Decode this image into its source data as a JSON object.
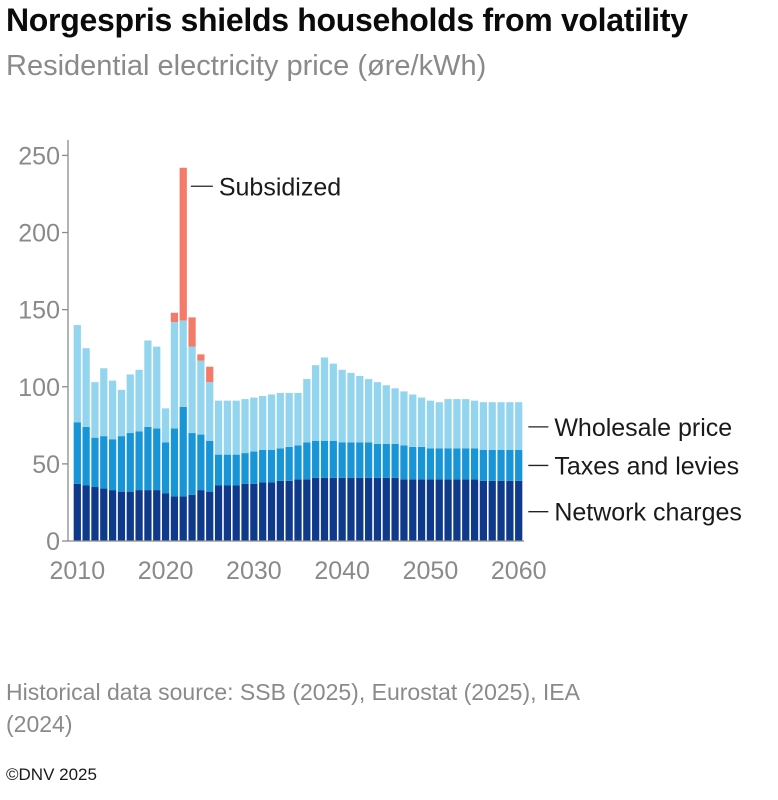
{
  "title": "Norgespris shields households from volatility",
  "subtitle": "Residential electricity price (øre/kWh)",
  "source": "Historical data source: SSB (2025), Eurostat (2025), IEA (2024)",
  "copyright": "©DNV 2025",
  "colors": {
    "network": "#0f3a8c",
    "taxes": "#1895d6",
    "wholesale": "#93d5ee",
    "subsidized": "#f47b6a"
  },
  "chart_data": {
    "type": "bar",
    "stacked": true,
    "x": [
      2010,
      2011,
      2012,
      2013,
      2014,
      2015,
      2016,
      2017,
      2018,
      2019,
      2020,
      2021,
      2022,
      2023,
      2024,
      2025,
      2026,
      2027,
      2028,
      2029,
      2030,
      2031,
      2032,
      2033,
      2034,
      2035,
      2036,
      2037,
      2038,
      2039,
      2040,
      2041,
      2042,
      2043,
      2044,
      2045,
      2046,
      2047,
      2048,
      2049,
      2050,
      2051,
      2052,
      2053,
      2054,
      2055,
      2056,
      2057,
      2058,
      2059,
      2060
    ],
    "xticks": [
      "2010",
      "2020",
      "2030",
      "2040",
      "2050",
      "2060"
    ],
    "xtick_values": [
      2010,
      2020,
      2030,
      2040,
      2050,
      2060
    ],
    "yticks": [
      "0",
      "50",
      "100",
      "150",
      "200",
      "250"
    ],
    "ytick_values": [
      0,
      50,
      100,
      150,
      200,
      250
    ],
    "ylim": [
      0,
      260
    ],
    "xlim": [
      2009.4,
      2060.6
    ],
    "series": [
      {
        "name": "Network charges",
        "key": "network",
        "values": [
          37,
          36,
          35,
          34,
          33,
          32,
          32,
          33,
          33,
          33,
          31,
          29,
          29,
          30,
          33,
          32,
          36,
          36,
          36,
          37,
          37,
          38,
          38,
          39,
          39,
          40,
          40,
          41,
          41,
          41,
          41,
          41,
          41,
          41,
          41,
          41,
          41,
          40,
          40,
          40,
          40,
          40,
          40,
          40,
          40,
          40,
          39,
          39,
          39,
          39,
          39
        ]
      },
      {
        "name": "Taxes and levies",
        "key": "taxes",
        "values": [
          40,
          38,
          32,
          34,
          33,
          36,
          38,
          38,
          41,
          40,
          33,
          44,
          58,
          40,
          36,
          33,
          20,
          20,
          20,
          20,
          21,
          21,
          21,
          21,
          22,
          22,
          24,
          24,
          24,
          24,
          23,
          23,
          23,
          23,
          22,
          22,
          22,
          22,
          21,
          21,
          20,
          20,
          20,
          20,
          20,
          20,
          20,
          20,
          20,
          20,
          20
        ]
      },
      {
        "name": "Wholesale price",
        "key": "wholesale",
        "values": [
          63,
          51,
          36,
          44,
          38,
          30,
          38,
          40,
          56,
          53,
          22,
          69,
          56,
          56,
          48,
          38,
          35,
          35,
          35,
          35,
          35,
          35,
          36,
          36,
          35,
          34,
          41,
          49,
          54,
          50,
          47,
          45,
          43,
          41,
          40,
          38,
          36,
          35,
          34,
          32,
          31,
          30,
          32,
          32,
          32,
          31,
          31,
          31,
          31,
          31,
          31
        ]
      },
      {
        "name": "Subsidized",
        "key": "subsidized",
        "values": [
          0,
          0,
          0,
          0,
          0,
          0,
          0,
          0,
          0,
          0,
          0,
          6,
          99,
          19,
          4,
          10,
          0,
          0,
          0,
          0,
          0,
          0,
          0,
          0,
          0,
          0,
          0,
          0,
          0,
          0,
          0,
          0,
          0,
          0,
          0,
          0,
          0,
          0,
          0,
          0,
          0,
          0,
          0,
          0,
          0,
          0,
          0,
          0,
          0,
          0,
          0
        ]
      }
    ],
    "annotations": [
      {
        "text": "Subsidized",
        "key": "subsidized",
        "x": 2022,
        "y": 230
      },
      {
        "text": "Wholesale price",
        "key": "wholesale",
        "x": 2060,
        "y": 74
      },
      {
        "text": "Taxes and levies",
        "key": "taxes",
        "x": 2060,
        "y": 49
      },
      {
        "text": "Network charges",
        "key": "network",
        "x": 2060,
        "y": 19
      }
    ],
    "grid": false,
    "legend": "direct labels on right"
  }
}
